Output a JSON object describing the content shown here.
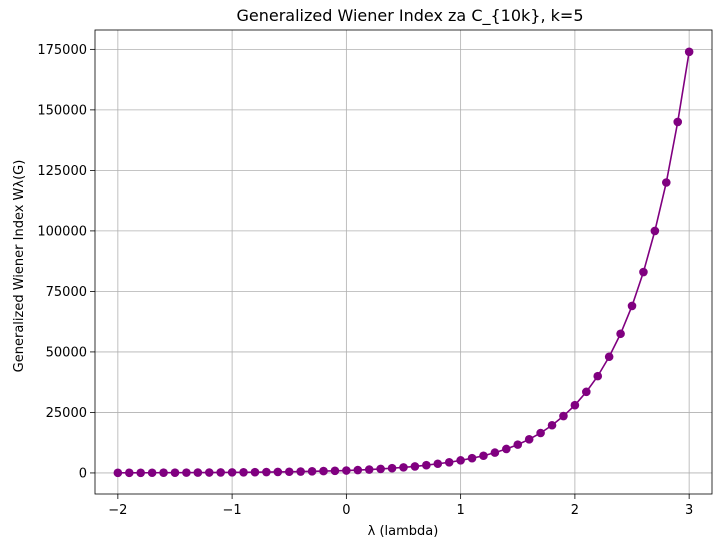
{
  "chart_data": {
    "type": "line",
    "title": "Generalized Wiener Index za C_{10k}, k=5",
    "xlabel": "λ (lambda)",
    "ylabel": "Generalized Wiener Index Wλ(G)",
    "xlim": [
      -2.2,
      3.2
    ],
    "ylim": [
      -8700,
      183000
    ],
    "xticks": [
      -2,
      -1,
      0,
      1,
      2,
      3
    ],
    "xtick_labels": [
      "−2",
      "−1",
      "0",
      "1",
      "2",
      "3"
    ],
    "yticks": [
      0,
      25000,
      50000,
      75000,
      100000,
      125000,
      150000,
      175000
    ],
    "ytick_labels": [
      "0",
      "25000",
      "50000",
      "75000",
      "100000",
      "125000",
      "150000",
      "175000"
    ],
    "grid": true,
    "series": [
      {
        "color": "#800080",
        "marker": "circle",
        "x": [
          -2.0,
          -1.9,
          -1.8,
          -1.7,
          -1.6,
          -1.5,
          -1.4,
          -1.3,
          -1.2,
          -1.1,
          -1.0,
          -0.9,
          -0.8,
          -0.7,
          -0.6,
          -0.5,
          -0.4,
          -0.3,
          -0.2,
          -0.1,
          0.0,
          0.1,
          0.2,
          0.3,
          0.4,
          0.5,
          0.6,
          0.7,
          0.8,
          0.9,
          1.0,
          1.1,
          1.2,
          1.3,
          1.4,
          1.5,
          1.6,
          1.7,
          1.8,
          1.9,
          2.0,
          2.1,
          2.2,
          2.3,
          2.4,
          2.5,
          2.6,
          2.7,
          2.8,
          2.9,
          3.0
        ],
        "y": [
          50,
          60,
          70,
          80,
          95,
          110,
          130,
          150,
          175,
          200,
          235,
          270,
          315,
          365,
          420,
          490,
          570,
          660,
          770,
          890,
          1000,
          1200,
          1400,
          1650,
          1950,
          2300,
          2700,
          3200,
          3800,
          4400,
          5200,
          6100,
          7100,
          8400,
          9900,
          11700,
          13900,
          16500,
          19700,
          23500,
          28000,
          33500,
          40000,
          48000,
          57500,
          69000,
          83000,
          100000,
          120000,
          145000,
          174000
        ]
      }
    ]
  }
}
